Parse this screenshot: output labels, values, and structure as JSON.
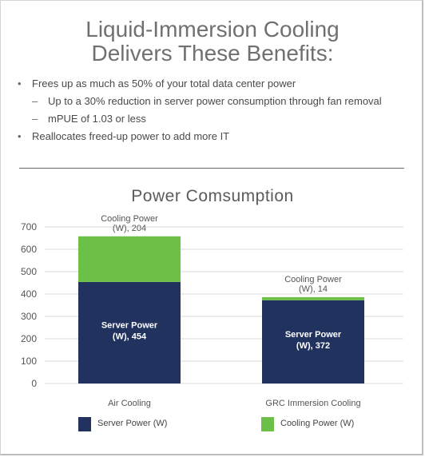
{
  "headline": {
    "line1": "Liquid-Immersion Cooling",
    "line2": "Delivers These Benefits:"
  },
  "benefits": [
    {
      "level": 1,
      "bullet": "•",
      "text": "Frees up as much as 50% of your total data center power"
    },
    {
      "level": 2,
      "bullet": "–",
      "text": "Up to a 30% reduction in server power consumption through fan removal"
    },
    {
      "level": 2,
      "bullet": "–",
      "text": "mPUE of 1.03 or less"
    },
    {
      "level": 1,
      "bullet": "•",
      "text": "Reallocates freed-up power to add more IT"
    }
  ],
  "chart_data": {
    "type": "bar",
    "stacked": true,
    "title": "Power Comsumption",
    "categories": [
      "Air Cooling",
      "GRC Immersion Cooling"
    ],
    "series": [
      {
        "name": "Server Power (W)",
        "values": [
          454,
          372
        ],
        "labels": [
          [
            "Server Power",
            "(W), 454"
          ],
          [
            "Server Power",
            "(W), 372"
          ]
        ]
      },
      {
        "name": "Cooling Power (W)",
        "values": [
          204,
          14
        ],
        "labels": [
          [
            "Cooling Power",
            "(W), 204"
          ],
          [
            "Cooling Power",
            "(W), 14"
          ]
        ]
      }
    ],
    "yticks": [
      "0",
      "100",
      "200",
      "300",
      "400",
      "500",
      "600",
      "700"
    ],
    "ylim": [
      0,
      700
    ],
    "grid": true,
    "legend_position": "bottom",
    "colors": {
      "server": "#22325e",
      "cooling": "#6cbf47",
      "grid": "#d9d9d9",
      "axis_text": "#555555",
      "inner_label": "#ffffff"
    }
  },
  "legend": [
    {
      "label": "Server Power (W)",
      "color": "#22325e"
    },
    {
      "label": "Cooling Power (W)",
      "color": "#6cbf47"
    }
  ]
}
